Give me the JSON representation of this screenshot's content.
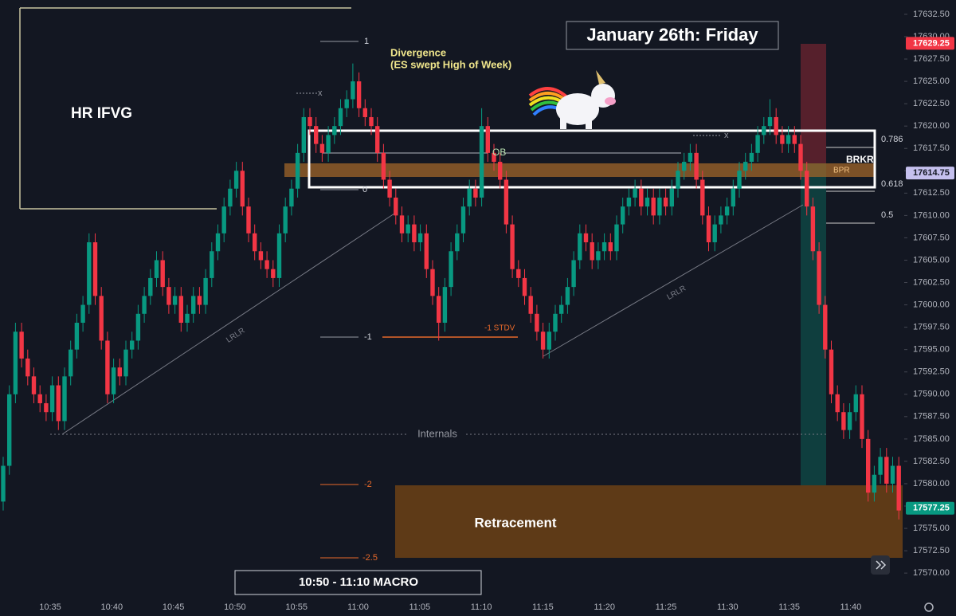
{
  "chart_data": {
    "type": "candlestick",
    "ylim": [
      17567.25,
      17634.1
    ],
    "yticks": [
      {
        "value": 17570,
        "label": "17570.00"
      },
      {
        "value": 17572.5,
        "label": "17572.50"
      },
      {
        "value": 17575,
        "label": "17575.00"
      },
      {
        "value": 17577.5,
        "label": "17577.50"
      },
      {
        "value": 17580,
        "label": "17580.00"
      },
      {
        "value": 17582.5,
        "label": "17582.50"
      },
      {
        "value": 17585,
        "label": "17585.00"
      },
      {
        "value": 17587.5,
        "label": "17587.50"
      },
      {
        "value": 17590,
        "label": "17590.00"
      },
      {
        "value": 17592.5,
        "label": "17592.50"
      },
      {
        "value": 17595,
        "label": "17595.00"
      },
      {
        "value": 17597.5,
        "label": "17597.50"
      },
      {
        "value": 17600,
        "label": "17600.00"
      },
      {
        "value": 17602.5,
        "label": "17602.50"
      },
      {
        "value": 17605,
        "label": "17605.00"
      },
      {
        "value": 17607.5,
        "label": "17607.50"
      },
      {
        "value": 17610,
        "label": "17610.00"
      },
      {
        "value": 17612.5,
        "label": "17612.50"
      },
      {
        "value": 17615,
        "label": "17615.00"
      },
      {
        "value": 17617.5,
        "label": "17617.50"
      },
      {
        "value": 17620,
        "label": "17620.00"
      },
      {
        "value": 17622.5,
        "label": "17622.50"
      },
      {
        "value": 17625,
        "label": "17625.00"
      },
      {
        "value": 17627.5,
        "label": "17627.50"
      },
      {
        "value": 17630,
        "label": "17630.00"
      },
      {
        "value": 17632.5,
        "label": "17632.50"
      }
    ],
    "time_labels": [
      "10:35",
      "10:40",
      "10:45",
      "10:50",
      "10:55",
      "11:00",
      "11:05",
      "11:10",
      "11:15",
      "11:20",
      "11:25",
      "11:30",
      "11:35",
      "11:40"
    ],
    "up_color": "#089981",
    "down_color": "#f23645",
    "price_tags": [
      {
        "value": 17629.25,
        "label": "17629.25",
        "color": "#f23645"
      },
      {
        "value": 17614.75,
        "label": "17614.75",
        "color": "#c5c0ee"
      },
      {
        "value": 17577.25,
        "label": "17577.25",
        "color": "#089981"
      }
    ],
    "annotations": {
      "hr_ifvg": "HR IFVG",
      "divergence": "Divergence",
      "divergence_note": "(ES swept High of Week)",
      "date_title": "January 26th: Friday",
      "ob": "OB",
      "bpr": "BPR",
      "brkr": "BRKR",
      "fib_786": "0.786",
      "fib_618": "0.618",
      "fib_5": "0.5",
      "std_1": "1",
      "std_0": "0",
      "std_m1": "-1",
      "std_m1_label": "-1 STDV",
      "std_m2": "-2",
      "std_m25": "-2.5",
      "lrlr": "LRLR",
      "internals": "Internals",
      "retracement": "Retracement",
      "macro": "10:50 - 11:10 MACRO",
      "x_mark": "x"
    },
    "candles": [
      [
        17578,
        17583,
        17577,
        17582
      ],
      [
        17582,
        17591,
        17581,
        17590
      ],
      [
        17590,
        17598,
        17589,
        17597
      ],
      [
        17597,
        17598,
        17593,
        17594
      ],
      [
        17594,
        17595,
        17591,
        17592
      ],
      [
        17592,
        17593,
        17589,
        17590
      ],
      [
        17590,
        17591,
        17588,
        17589
      ],
      [
        17589,
        17590,
        17587,
        17588
      ],
      [
        17588,
        17592,
        17587,
        17591
      ],
      [
        17591,
        17592,
        17586,
        17587
      ],
      [
        17587,
        17593,
        17586,
        17592
      ],
      [
        17592,
        17596,
        17591,
        17595
      ],
      [
        17595,
        17599,
        17594,
        17598
      ],
      [
        17598,
        17601,
        17597,
        17600
      ],
      [
        17600,
        17608,
        17599,
        17607
      ],
      [
        17607,
        17608,
        17600,
        17601
      ],
      [
        17601,
        17602,
        17595,
        17596
      ],
      [
        17596,
        17597,
        17589,
        17590
      ],
      [
        17590,
        17594,
        17589,
        17593
      ],
      [
        17593,
        17594,
        17591,
        17592
      ],
      [
        17592,
        17596,
        17591,
        17595
      ],
      [
        17595,
        17597,
        17594,
        17596
      ],
      [
        17596,
        17600,
        17595,
        17599
      ],
      [
        17599,
        17602,
        17598,
        17601
      ],
      [
        17601,
        17604,
        17600,
        17603
      ],
      [
        17603,
        17606,
        17602,
        17605
      ],
      [
        17605,
        17606,
        17601,
        17602
      ],
      [
        17602,
        17603,
        17599,
        17600
      ],
      [
        17600,
        17602,
        17599,
        17601
      ],
      [
        17601,
        17602,
        17597,
        17598
      ],
      [
        17598,
        17600,
        17597,
        17599
      ],
      [
        17599,
        17602,
        17598,
        17601
      ],
      [
        17601,
        17602,
        17599,
        17600
      ],
      [
        17600,
        17604,
        17599,
        17603
      ],
      [
        17603,
        17607,
        17602,
        17606
      ],
      [
        17606,
        17609,
        17605,
        17608
      ],
      [
        17608,
        17612,
        17607,
        17611
      ],
      [
        17611,
        17614,
        17610,
        17613
      ],
      [
        17613,
        17616,
        17612,
        17615
      ],
      [
        17615,
        17616,
        17610,
        17611
      ],
      [
        17611,
        17612,
        17607,
        17608
      ],
      [
        17608,
        17609,
        17605,
        17606
      ],
      [
        17606,
        17607,
        17604,
        17605
      ],
      [
        17605,
        17606,
        17603,
        17604
      ],
      [
        17604,
        17605,
        17602,
        17603
      ],
      [
        17603,
        17609,
        17602,
        17608
      ],
      [
        17608,
        17612,
        17607,
        17611
      ],
      [
        17611,
        17614,
        17610,
        17613
      ],
      [
        17613,
        17618,
        17612,
        17617
      ],
      [
        17617,
        17622,
        17616,
        17621
      ],
      [
        17621,
        17622,
        17619,
        17620
      ],
      [
        17620,
        17621,
        17617,
        17618
      ],
      [
        17618,
        17619,
        17616,
        17617
      ],
      [
        17617,
        17620,
        17616,
        17619
      ],
      [
        17619,
        17621,
        17618,
        17620
      ],
      [
        17620,
        17623,
        17619,
        17622
      ],
      [
        17622,
        17624,
        17621,
        17623
      ],
      [
        17623,
        17627,
        17622,
        17625
      ],
      [
        17625,
        17626,
        17621,
        17622
      ],
      [
        17622,
        17623,
        17620,
        17621
      ],
      [
        17621,
        17622,
        17619,
        17620
      ],
      [
        17620,
        17621,
        17616,
        17617
      ],
      [
        17617,
        17618,
        17613,
        17614
      ],
      [
        17614,
        17615,
        17611,
        17612
      ],
      [
        17612,
        17613,
        17609,
        17610
      ],
      [
        17610,
        17611,
        17607,
        17608
      ],
      [
        17608,
        17610,
        17607,
        17609
      ],
      [
        17609,
        17610,
        17606,
        17607
      ],
      [
        17607,
        17609,
        17606,
        17608
      ],
      [
        17608,
        17609,
        17603,
        17604
      ],
      [
        17604,
        17605,
        17600,
        17601
      ],
      [
        17601,
        17602,
        17596,
        17598
      ],
      [
        17598,
        17603,
        17597,
        17602
      ],
      [
        17602,
        17607,
        17601,
        17606
      ],
      [
        17606,
        17609,
        17605,
        17608
      ],
      [
        17608,
        17612,
        17607,
        17611
      ],
      [
        17611,
        17614,
        17610,
        17613
      ],
      [
        17613,
        17614,
        17611,
        17612
      ],
      [
        17612,
        17622,
        17611,
        17620
      ],
      [
        17620,
        17621,
        17616,
        17617
      ],
      [
        17617,
        17618,
        17615,
        17616
      ],
      [
        17616,
        17617,
        17613,
        17614
      ],
      [
        17614,
        17615,
        17608,
        17609
      ],
      [
        17609,
        17610,
        17603,
        17604
      ],
      [
        17604,
        17605,
        17602,
        17603
      ],
      [
        17603,
        17604,
        17600,
        17601
      ],
      [
        17601,
        17602,
        17598,
        17599
      ],
      [
        17599,
        17600,
        17596,
        17597
      ],
      [
        17597,
        17598,
        17594,
        17595
      ],
      [
        17595,
        17598,
        17594,
        17597
      ],
      [
        17597,
        17600,
        17596,
        17599
      ],
      [
        17599,
        17601,
        17598,
        17600
      ],
      [
        17600,
        17603,
        17599,
        17602
      ],
      [
        17602,
        17606,
        17601,
        17605
      ],
      [
        17605,
        17609,
        17604,
        17608
      ],
      [
        17608,
        17609,
        17606,
        17607
      ],
      [
        17607,
        17608,
        17604,
        17605
      ],
      [
        17605,
        17607,
        17604,
        17606
      ],
      [
        17606,
        17608,
        17605,
        17607
      ],
      [
        17607,
        17608,
        17605,
        17606
      ],
      [
        17606,
        17610,
        17605,
        17609
      ],
      [
        17609,
        17612,
        17608,
        17611
      ],
      [
        17611,
        17613,
        17610,
        17612
      ],
      [
        17612,
        17614,
        17611,
        17613
      ],
      [
        17613,
        17614,
        17610,
        17611
      ],
      [
        17611,
        17613,
        17610,
        17612
      ],
      [
        17612,
        17613,
        17609,
        17610
      ],
      [
        17610,
        17613,
        17609,
        17612
      ],
      [
        17612,
        17613,
        17610,
        17611
      ],
      [
        17611,
        17614,
        17610,
        17613
      ],
      [
        17613,
        17616,
        17612,
        17615
      ],
      [
        17615,
        17617,
        17614,
        17616
      ],
      [
        17616,
        17618,
        17615,
        17617
      ],
      [
        17617,
        17618,
        17613,
        17614
      ],
      [
        17614,
        17615,
        17609,
        17610
      ],
      [
        17610,
        17611,
        17606,
        17607
      ],
      [
        17607,
        17610,
        17606,
        17609
      ],
      [
        17609,
        17611,
        17608,
        17610
      ],
      [
        17610,
        17612,
        17609,
        17611
      ],
      [
        17611,
        17614,
        17610,
        17613
      ],
      [
        17613,
        17616,
        17612,
        17615
      ],
      [
        17615,
        17617,
        17614,
        17616
      ],
      [
        17616,
        17618,
        17615,
        17617
      ],
      [
        17617,
        17620,
        17616,
        17619
      ],
      [
        17619,
        17621,
        17618,
        17620
      ],
      [
        17620,
        17623,
        17619,
        17621
      ],
      [
        17621,
        17622,
        17618,
        17619
      ],
      [
        17619,
        17620,
        17617,
        17618
      ],
      [
        17618,
        17620,
        17617,
        17619
      ],
      [
        17619,
        17620,
        17617,
        17618
      ],
      [
        17618,
        17619,
        17614,
        17615
      ],
      [
        17615,
        17616,
        17610,
        17611
      ],
      [
        17611,
        17612,
        17605,
        17606
      ],
      [
        17606,
        17607,
        17599,
        17600
      ],
      [
        17600,
        17601,
        17594,
        17595
      ],
      [
        17595,
        17596,
        17589,
        17590
      ],
      [
        17590,
        17591,
        17587,
        17588
      ],
      [
        17588,
        17589,
        17585,
        17586
      ],
      [
        17586,
        17589,
        17585,
        17588
      ],
      [
        17588,
        17591,
        17587,
        17590
      ],
      [
        17590,
        17591,
        17584,
        17585
      ],
      [
        17585,
        17586,
        17578,
        17579
      ],
      [
        17579,
        17582,
        17578,
        17581
      ],
      [
        17581,
        17584,
        17580,
        17583
      ],
      [
        17583,
        17584,
        17579,
        17580
      ],
      [
        17580,
        17583,
        17579,
        17582
      ],
      [
        17582,
        17583,
        17576,
        17577
      ]
    ]
  }
}
